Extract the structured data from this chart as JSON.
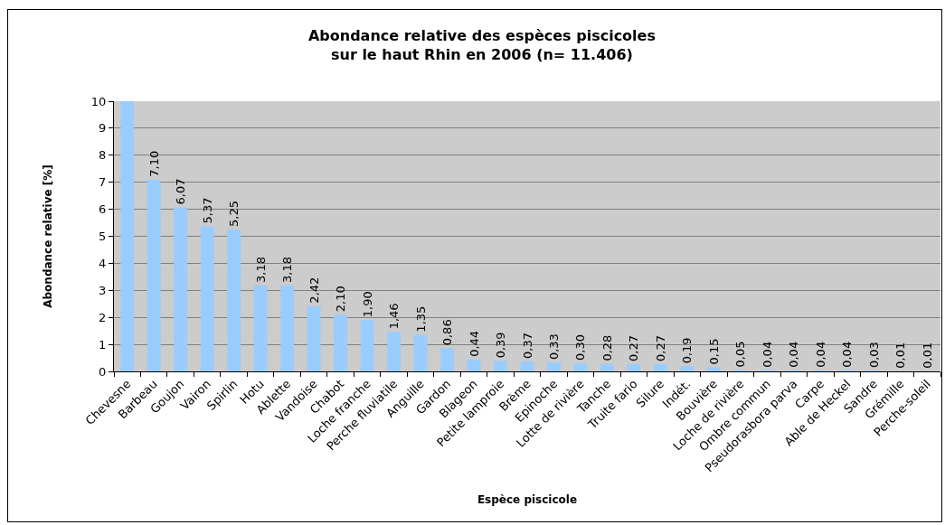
{
  "chart_data": {
    "type": "bar",
    "title": "Abondance relative des espèces piscicoles\nsur le haut Rhin en 2006 (n= 11.406)",
    "xlabel": "Espèce piscicole",
    "ylabel": "Abondance relative [%]",
    "categories": [
      "Chevesne",
      "Barbeau",
      "Goujon",
      "Vairon",
      "Spirlin",
      "Hotu",
      "Ablette",
      "Vandoise",
      "Chabot",
      "Loche franche",
      "Perche fluviatile",
      "Anguille",
      "Gardon",
      "Blageon",
      "Petite lamproie",
      "Brème",
      "Epinoche",
      "Lotte de rivière",
      "Tanche",
      "Truite fario",
      "Silure",
      "Indét.",
      "Bouvière",
      "Loche de rivière",
      "Ombre commun",
      "Pseudorasbora parva",
      "Carpe",
      "Able de Heckel",
      "Sandre",
      "Grémille",
      "Perche-soleil"
    ],
    "values": [
      10,
      7.1,
      6.07,
      5.37,
      5.25,
      3.18,
      3.18,
      2.42,
      2.1,
      1.9,
      1.46,
      1.35,
      0.86,
      0.44,
      0.39,
      0.37,
      0.33,
      0.3,
      0.28,
      0.27,
      0.27,
      0.19,
      0.15,
      0.05,
      0.04,
      0.04,
      0.04,
      0.04,
      0.03,
      0.01,
      0.01
    ],
    "value_labels": [
      null,
      "7,10",
      "6,07",
      "5,37",
      "5,25",
      "3,18",
      "3,18",
      "2,42",
      "2,10",
      "1,90",
      "1,46",
      "1,35",
      "0,86",
      "0,44",
      "0,39",
      "0,37",
      "0,33",
      "0,30",
      "0,28",
      "0,27",
      "0,27",
      "0,19",
      "0,15",
      "0,05",
      "0,04",
      "0,04",
      "0,04",
      "0,04",
      "0,03",
      "0,01",
      "0,01"
    ],
    "color": "#99ccff",
    "ylim": [
      0,
      10
    ],
    "yticks": [
      0,
      1,
      2,
      3,
      4,
      5,
      6,
      7,
      8,
      9,
      10
    ],
    "grid": "y"
  }
}
